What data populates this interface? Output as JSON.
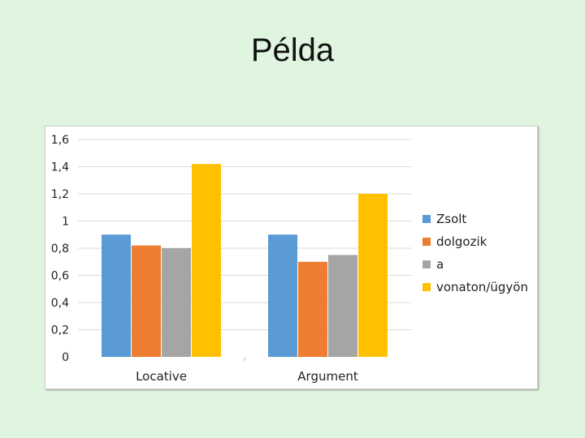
{
  "slide": {
    "title": "Példa"
  },
  "colors": {
    "background": "#dff5df",
    "grid": "#d9d9d9"
  },
  "chart_data": {
    "type": "bar",
    "categories": [
      "Locative",
      "Argument"
    ],
    "series": [
      {
        "name": "Zsolt",
        "color": "#5b9bd5",
        "values": [
          0.9,
          0.9
        ]
      },
      {
        "name": "dolgozik",
        "color": "#ed7d31",
        "values": [
          0.82,
          0.7
        ]
      },
      {
        "name": "a",
        "color": "#a5a5a5",
        "values": [
          0.8,
          0.75
        ]
      },
      {
        "name": "vonaton/ügyön",
        "color": "#ffc000",
        "values": [
          1.42,
          1.2
        ]
      }
    ],
    "yticks": [
      "0",
      "0,2",
      "0,4",
      "0,6",
      "0,8",
      "1",
      "1,2",
      "1,4",
      "1,6"
    ],
    "ylim": [
      0,
      1.6
    ],
    "grid": true,
    "legend_position": "right"
  }
}
